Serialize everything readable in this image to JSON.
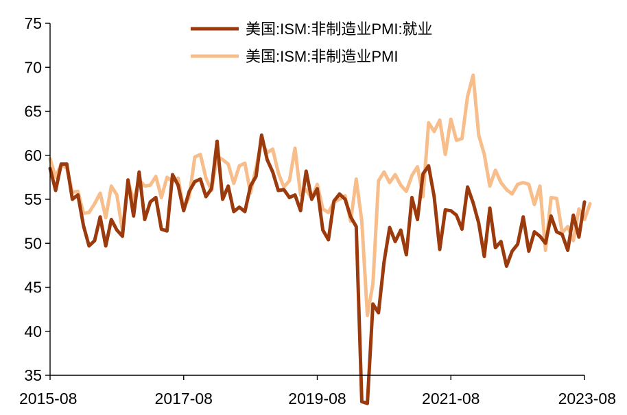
{
  "chart_data": {
    "type": "line",
    "title": "",
    "xlabel": "",
    "ylabel": "",
    "ylim": [
      35,
      75
    ],
    "yticks": [
      35,
      40,
      45,
      50,
      55,
      60,
      65,
      70,
      75
    ],
    "x_tick_labels": [
      "2015-08",
      "2017-08",
      "2019-08",
      "2021-08",
      "2023-08"
    ],
    "x_tick_months": [
      "2015-08",
      "2017-08",
      "2019-08",
      "2021-08",
      "2023-08"
    ],
    "x_range": [
      "2015-08",
      "2023-08"
    ],
    "grid": false,
    "legend_position": "top-center",
    "series": [
      {
        "name": "美国:ISM:非制造业PMI:就业",
        "color": "#9B3A0C",
        "start": "2015-08",
        "values": [
          58.5,
          56.0,
          59.0,
          59.0,
          55.0,
          55.5,
          52.0,
          49.7,
          50.3,
          53.0,
          49.7,
          52.7,
          51.5,
          50.8,
          57.2,
          53.1,
          58.1,
          52.7,
          54.7,
          55.2,
          51.6,
          51.4,
          57.8,
          56.6,
          53.7,
          55.9,
          57.0,
          57.3,
          55.3,
          56.2,
          61.6,
          55.0,
          56.5,
          53.6,
          54.1,
          53.6,
          56.5,
          57.6,
          62.3,
          59.5,
          58.1,
          56.0,
          56.1,
          55.2,
          55.5,
          53.7,
          58.2,
          55.0,
          56.2,
          51.5,
          50.4,
          54.8,
          55.6,
          55.0,
          53.0,
          51.9,
          32.0,
          31.8,
          43.1,
          42.1,
          47.9,
          51.8,
          50.2,
          51.5,
          48.7,
          55.2,
          52.7,
          57.9,
          58.8,
          55.3,
          49.3,
          53.8,
          53.7,
          53.2,
          51.6,
          56.4,
          54.6,
          52.3,
          48.5,
          54.0,
          49.5,
          50.2,
          47.4,
          49.1,
          49.9,
          53.0,
          49.1,
          51.3,
          50.8,
          50.0,
          53.1,
          51.3,
          51.0,
          49.2,
          53.2,
          50.7,
          54.7
        ]
      },
      {
        "name": "美国:ISM:非制造业PMI",
        "color": "#F7BD8A",
        "start": "2015-08",
        "values": [
          59.6,
          57.5,
          59.0,
          58.5,
          55.8,
          55.9,
          53.4,
          53.5,
          54.5,
          55.7,
          52.9,
          56.5,
          55.5,
          51.4,
          57.1,
          54.8,
          57.2,
          56.5,
          56.6,
          57.6,
          55.2,
          57.5,
          57.0,
          57.4,
          53.9,
          55.3,
          59.8,
          60.1,
          57.4,
          56.0,
          59.9,
          59.5,
          59.0,
          56.8,
          58.8,
          59.1,
          55.7,
          58.6,
          61.6,
          60.3,
          60.7,
          58.0,
          56.4,
          57.1,
          60.8,
          55.5,
          56.1,
          55.1,
          56.7,
          53.9,
          53.5,
          54.7,
          55.0,
          55.4,
          52.5,
          57.3,
          52.5,
          41.8,
          45.4,
          57.1,
          58.1,
          56.9,
          57.8,
          56.6,
          55.9,
          57.7,
          58.7,
          55.3,
          63.7,
          62.7,
          64.0,
          60.1,
          64.1,
          61.7,
          61.9,
          66.7,
          69.1,
          62.3,
          60.1,
          56.5,
          58.3,
          56.9,
          56.1,
          55.6,
          56.7,
          56.9,
          56.7,
          54.4,
          56.5,
          49.2,
          55.2,
          55.1,
          51.2,
          51.9,
          50.3,
          53.9,
          52.7,
          54.5
        ]
      }
    ]
  }
}
